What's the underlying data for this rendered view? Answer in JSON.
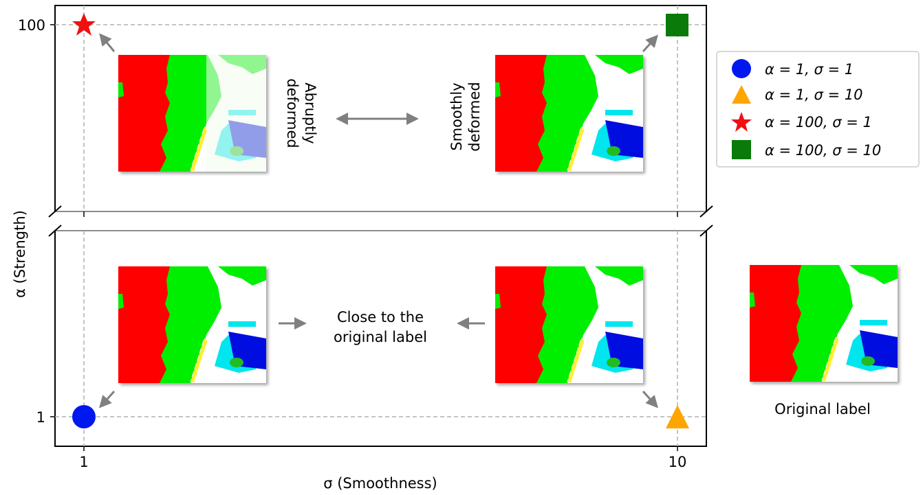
{
  "axes": {
    "y_ticks": [
      "100",
      "1"
    ],
    "x_ticks": [
      "1",
      "10"
    ],
    "y_label": "α (Strength)",
    "x_label": "σ (Smoothness)"
  },
  "annotations": {
    "abrupt": [
      "Abruptly",
      "deformed"
    ],
    "smooth": [
      "Smoothly",
      "deformed"
    ],
    "close": [
      "Close to the",
      "original label"
    ],
    "original": "Original label"
  },
  "legend": [
    "α = 1, σ = 1",
    "α = 1, σ = 10",
    "α = 100, σ = 1",
    "α = 100, σ = 10"
  ]
}
